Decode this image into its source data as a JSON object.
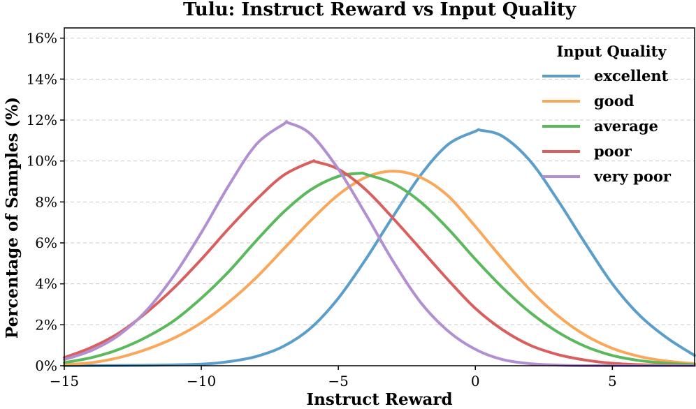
{
  "chart_data": {
    "type": "line",
    "title": "Tulu: Instruct Reward vs Input Quality",
    "xlabel": "Instruct Reward",
    "ylabel": "Percentage of Samples (%)",
    "xlim": [
      -15,
      8
    ],
    "ylim": [
      0,
      16.5
    ],
    "x_ticks": [
      -15,
      -10,
      -5,
      0,
      5
    ],
    "x_tick_labels": [
      "−15",
      "−10",
      "−5",
      "0",
      "5"
    ],
    "y_ticks": [
      0,
      2,
      4,
      6,
      8,
      10,
      12,
      14,
      16
    ],
    "y_tick_labels": [
      "0%",
      "2%",
      "4%",
      "6%",
      "8%",
      "10%",
      "12%",
      "14%",
      "16%"
    ],
    "grid": "horizontal dashed",
    "legend": {
      "title": "Input Quality",
      "placement": "top-right"
    },
    "series": [
      {
        "name": "excellent",
        "color": "#5b9ec9",
        "x": [
          -15,
          -12,
          -10,
          -9,
          -8,
          -7,
          -6,
          -5,
          -4,
          -3,
          -2,
          -1,
          0,
          0.2,
          1,
          2,
          3,
          4,
          5,
          6,
          7,
          8
        ],
        "y": [
          0.0,
          0.02,
          0.08,
          0.2,
          0.45,
          0.95,
          1.85,
          3.3,
          5.2,
          7.3,
          9.3,
          10.8,
          11.45,
          11.5,
          11.2,
          10.0,
          8.1,
          6.0,
          4.0,
          2.45,
          1.35,
          0.5
        ]
      },
      {
        "name": "good",
        "color": "#f9a85b",
        "x": [
          -15,
          -14,
          -13,
          -12,
          -11,
          -10,
          -9,
          -8,
          -7,
          -6,
          -5,
          -4,
          -3,
          -2,
          -1,
          0,
          1,
          2,
          3,
          4,
          5,
          6,
          7,
          8
        ],
        "y": [
          0.05,
          0.15,
          0.4,
          0.8,
          1.35,
          2.1,
          3.1,
          4.3,
          5.7,
          7.1,
          8.35,
          9.2,
          9.5,
          9.2,
          8.3,
          6.8,
          5.2,
          3.7,
          2.45,
          1.5,
          0.85,
          0.45,
          0.22,
          0.1
        ]
      },
      {
        "name": "average",
        "color": "#5cb85c",
        "x": [
          -15,
          -14,
          -13,
          -12,
          -11,
          -10,
          -9,
          -8,
          -7,
          -6,
          -5,
          -4.2,
          -4,
          -3,
          -2,
          -1,
          0,
          1,
          2,
          3,
          4,
          5,
          6,
          7,
          8
        ],
        "y": [
          0.15,
          0.4,
          0.8,
          1.4,
          2.2,
          3.3,
          4.6,
          6.1,
          7.5,
          8.6,
          9.25,
          9.4,
          9.35,
          8.9,
          8.0,
          6.7,
          5.2,
          3.8,
          2.6,
          1.65,
          0.95,
          0.5,
          0.25,
          0.12,
          0.05
        ]
      },
      {
        "name": "poor",
        "color": "#d95f5f",
        "x": [
          -15,
          -14,
          -13,
          -12,
          -11,
          -10,
          -9,
          -8,
          -7,
          -6,
          -5.8,
          -5,
          -4,
          -3,
          -2,
          -1,
          0,
          1,
          2,
          3,
          4,
          5,
          6,
          7,
          8
        ],
        "y": [
          0.4,
          0.9,
          1.6,
          2.6,
          3.8,
          5.2,
          6.7,
          8.1,
          9.3,
          9.95,
          9.95,
          9.6,
          8.6,
          7.2,
          5.7,
          4.2,
          2.8,
          1.75,
          1.0,
          0.55,
          0.28,
          0.12,
          0.05,
          0.02,
          0.0
        ]
      },
      {
        "name": "very poor",
        "color": "#b28fd1",
        "x": [
          -15,
          -14,
          -13,
          -12,
          -11,
          -10,
          -9,
          -8,
          -7,
          -6.8,
          -6,
          -5,
          -4,
          -3,
          -2,
          -1,
          0,
          1,
          2,
          3,
          4,
          5,
          6,
          7,
          8
        ],
        "y": [
          0.3,
          0.75,
          1.5,
          2.7,
          4.4,
          6.5,
          8.8,
          10.8,
          11.8,
          11.85,
          11.3,
          9.6,
          7.4,
          5.1,
          3.1,
          1.7,
          0.8,
          0.3,
          0.1,
          0.03,
          0.0,
          0.0,
          0.0,
          0.0,
          0.0
        ]
      }
    ]
  }
}
